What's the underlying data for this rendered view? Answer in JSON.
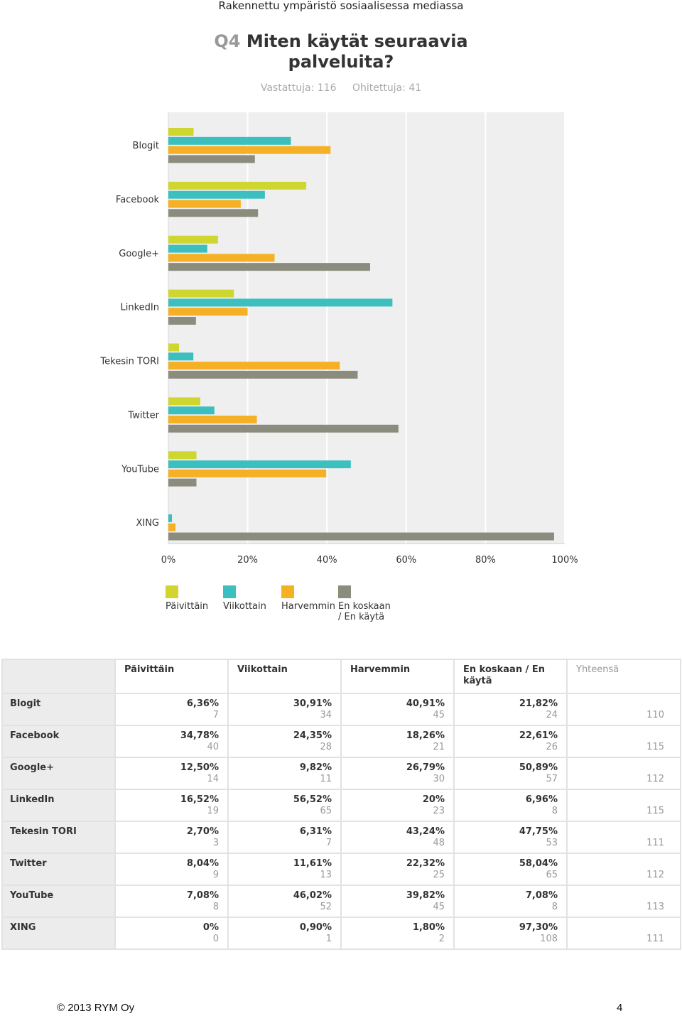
{
  "header": {
    "title": "Rakennettu ympäristö sosiaalisessa mediassa"
  },
  "question": {
    "number": "Q4",
    "text": "Miten käytät seuraavia palveluita?"
  },
  "stats": {
    "answered": "Vastattuja: 116",
    "skipped": "Ohitettuja: 41"
  },
  "colors": {
    "daily": "#cfd630",
    "weekly": "#3cbfbf",
    "rarely": "#f5b025",
    "never": "#8b8c7e"
  },
  "chart_data": {
    "type": "bar",
    "orientation": "horizontal",
    "categories": [
      "Blogit",
      "Facebook",
      "Google+",
      "LinkedIn",
      "Tekesin TORI",
      "Twitter",
      "YouTube",
      "XING"
    ],
    "xlim": [
      0,
      100
    ],
    "xticks": [
      "0%",
      "20%",
      "40%",
      "60%",
      "80%",
      "100%"
    ],
    "grid": true,
    "legend_placement": "bottom",
    "series": [
      {
        "name": "Päivittäin",
        "values": [
          6.36,
          34.78,
          12.5,
          16.52,
          2.7,
          8.04,
          7.08,
          0
        ]
      },
      {
        "name": "Viikottain",
        "values": [
          30.91,
          24.35,
          9.82,
          56.52,
          6.31,
          11.61,
          46.02,
          0.9
        ]
      },
      {
        "name": "Harvemmin",
        "values": [
          40.91,
          18.26,
          26.79,
          20,
          43.24,
          22.32,
          39.82,
          1.8
        ]
      },
      {
        "name": "En koskaan / En käytä",
        "values": [
          21.82,
          22.61,
          50.89,
          6.96,
          47.75,
          58.04,
          7.08,
          97.3
        ]
      }
    ]
  },
  "legend": [
    {
      "line1": "Päivittäin",
      "line2": ""
    },
    {
      "line1": "Viikottain",
      "line2": ""
    },
    {
      "line1": "Harvemmin",
      "line2": ""
    },
    {
      "line1": "En koskaan",
      "line2": "/ En käytä"
    }
  ],
  "table": {
    "headers": [
      "Päivittäin",
      "Viikottain",
      "Harvemmin",
      "En koskaan / En käytä",
      "Yhteensä"
    ],
    "rows": [
      {
        "label": "Blogit",
        "cells": [
          {
            "pct": "6,36%",
            "n": "7"
          },
          {
            "pct": "30,91%",
            "n": "34"
          },
          {
            "pct": "40,91%",
            "n": "45"
          },
          {
            "pct": "21,82%",
            "n": "24"
          }
        ],
        "total": "110"
      },
      {
        "label": "Facebook",
        "cells": [
          {
            "pct": "34,78%",
            "n": "40"
          },
          {
            "pct": "24,35%",
            "n": "28"
          },
          {
            "pct": "18,26%",
            "n": "21"
          },
          {
            "pct": "22,61%",
            "n": "26"
          }
        ],
        "total": "115"
      },
      {
        "label": "Google+",
        "cells": [
          {
            "pct": "12,50%",
            "n": "14"
          },
          {
            "pct": "9,82%",
            "n": "11"
          },
          {
            "pct": "26,79%",
            "n": "30"
          },
          {
            "pct": "50,89%",
            "n": "57"
          }
        ],
        "total": "112"
      },
      {
        "label": "LinkedIn",
        "cells": [
          {
            "pct": "16,52%",
            "n": "19"
          },
          {
            "pct": "56,52%",
            "n": "65"
          },
          {
            "pct": "20%",
            "n": "23"
          },
          {
            "pct": "6,96%",
            "n": "8"
          }
        ],
        "total": "115"
      },
      {
        "label": "Tekesin TORI",
        "cells": [
          {
            "pct": "2,70%",
            "n": "3"
          },
          {
            "pct": "6,31%",
            "n": "7"
          },
          {
            "pct": "43,24%",
            "n": "48"
          },
          {
            "pct": "47,75%",
            "n": "53"
          }
        ],
        "total": "111"
      },
      {
        "label": "Twitter",
        "cells": [
          {
            "pct": "8,04%",
            "n": "9"
          },
          {
            "pct": "11,61%",
            "n": "13"
          },
          {
            "pct": "22,32%",
            "n": "25"
          },
          {
            "pct": "58,04%",
            "n": "65"
          }
        ],
        "total": "112"
      },
      {
        "label": "YouTube",
        "cells": [
          {
            "pct": "7,08%",
            "n": "8"
          },
          {
            "pct": "46,02%",
            "n": "52"
          },
          {
            "pct": "39,82%",
            "n": "45"
          },
          {
            "pct": "7,08%",
            "n": "8"
          }
        ],
        "total": "113"
      },
      {
        "label": "XING",
        "cells": [
          {
            "pct": "0%",
            "n": "0"
          },
          {
            "pct": "0,90%",
            "n": "1"
          },
          {
            "pct": "1,80%",
            "n": "2"
          },
          {
            "pct": "97,30%",
            "n": "108"
          }
        ],
        "total": "111"
      }
    ]
  },
  "footer": {
    "copyright": "© 2013 RYM Oy",
    "page": "4"
  }
}
